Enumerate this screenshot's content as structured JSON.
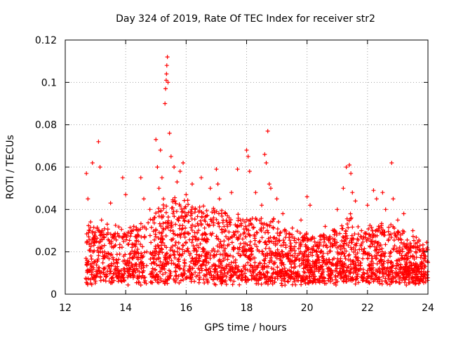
{
  "chart_data": {
    "type": "scatter",
    "title": "Day 324 of 2019, Rate Of TEC Index for receiver str2",
    "xlabel": "GPS time / hours",
    "ylabel": "ROTI / TECUs",
    "xlim": [
      12,
      24
    ],
    "ylim": [
      0,
      0.12
    ],
    "xticks": [
      12,
      14,
      16,
      18,
      20,
      22,
      24
    ],
    "yticks": [
      0,
      0.02,
      0.04,
      0.06,
      0.08,
      0.1,
      0.12
    ],
    "xtick_labels": [
      "12",
      "14",
      "16",
      "18",
      "20",
      "22",
      "24"
    ],
    "ytick_labels": [
      "0",
      "0.02",
      "0.04",
      "0.06",
      "0.08",
      "0.1",
      "0.12"
    ],
    "grid": true,
    "marker": "+",
    "series": [
      {
        "name": "ROTI",
        "color": "#ff0000",
        "x": [
          12.7,
          12.75,
          12.8,
          12.85,
          12.9,
          13.0,
          13.1,
          13.15,
          13.2,
          13.3,
          13.5,
          13.6,
          13.7,
          13.8,
          13.9,
          14.0,
          14.2,
          14.3,
          14.5,
          14.6,
          14.7,
          14.8,
          14.9,
          15.0,
          15.05,
          15.1,
          15.15,
          15.2,
          15.25,
          15.3,
          15.3,
          15.32,
          15.34,
          15.35,
          15.36,
          15.38,
          15.4,
          15.45,
          15.5,
          15.6,
          15.7,
          15.8,
          15.9,
          16.0,
          16.2,
          16.3,
          16.5,
          16.6,
          16.8,
          17.0,
          17.05,
          17.1,
          17.3,
          17.5,
          17.7,
          17.8,
          17.9,
          18.0,
          18.05,
          18.1,
          18.3,
          18.5,
          18.6,
          18.65,
          18.7,
          18.75,
          18.8,
          19.0,
          19.2,
          19.5,
          19.8,
          20.0,
          20.1,
          20.3,
          20.6,
          20.9,
          21.0,
          21.2,
          21.3,
          21.4,
          21.45,
          21.5,
          21.6,
          21.8,
          22.0,
          22.2,
          22.3,
          22.5,
          22.6,
          22.8,
          22.85,
          23.0,
          23.2,
          23.5,
          23.7,
          23.9,
          24.0,
          14.9,
          18.8,
          22.2
        ],
        "y": [
          0.057,
          0.045,
          0.03,
          0.018,
          0.062,
          0.025,
          0.072,
          0.06,
          0.035,
          0.02,
          0.043,
          0.028,
          0.015,
          0.022,
          0.055,
          0.047,
          0.03,
          0.012,
          0.055,
          0.045,
          0.02,
          0.04,
          0.035,
          0.073,
          0.06,
          0.05,
          0.068,
          0.055,
          0.045,
          0.005,
          0.09,
          0.097,
          0.101,
          0.104,
          0.108,
          0.112,
          0.1,
          0.076,
          0.065,
          0.06,
          0.053,
          0.058,
          0.062,
          0.047,
          0.052,
          0.04,
          0.055,
          0.035,
          0.05,
          0.059,
          0.052,
          0.045,
          0.038,
          0.048,
          0.059,
          0.035,
          0.02,
          0.068,
          0.065,
          0.058,
          0.048,
          0.042,
          0.066,
          0.062,
          0.077,
          0.052,
          0.05,
          0.045,
          0.038,
          0.028,
          0.035,
          0.046,
          0.042,
          0.02,
          0.032,
          0.025,
          0.04,
          0.05,
          0.06,
          0.061,
          0.057,
          0.048,
          0.044,
          0.03,
          0.042,
          0.049,
          0.045,
          0.048,
          0.04,
          0.062,
          0.045,
          0.035,
          0.038,
          0.03,
          0.025,
          0.018,
          0.015,
          0.01,
          0.008,
          0.006
        ]
      }
    ]
  }
}
